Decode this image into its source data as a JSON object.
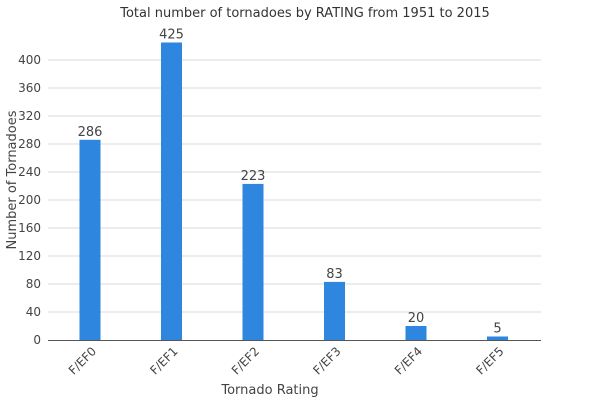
{
  "chart_data": {
    "type": "bar",
    "title": "Total number of tornadoes by RATING from 1951 to 2015",
    "xlabel": "Tornado Rating",
    "ylabel": "Number of Tornadoes",
    "categories": [
      "F/EF0",
      "F/EF1",
      "F/EF2",
      "F/EF3",
      "F/EF4",
      "F/EF5"
    ],
    "values": [
      286,
      425,
      223,
      83,
      20,
      5
    ],
    "data_labels": [
      "286",
      "425",
      "223",
      "83",
      "20",
      "5"
    ],
    "ylim": [
      0,
      440
    ],
    "yticks": [
      0,
      40,
      80,
      120,
      160,
      200,
      240,
      280,
      320,
      360,
      400
    ],
    "ytick_labels": [
      "0",
      "40",
      "80",
      "120",
      "160",
      "200",
      "240",
      "280",
      "320",
      "360",
      "400"
    ],
    "grid": true,
    "legend": "none",
    "bar_color": "#2e86de"
  }
}
